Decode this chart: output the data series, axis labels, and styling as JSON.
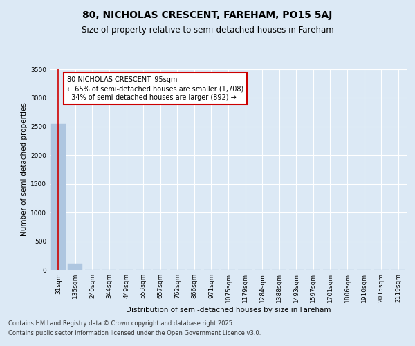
{
  "title": "80, NICHOLAS CRESCENT, FAREHAM, PO15 5AJ",
  "subtitle": "Size of property relative to semi-detached houses in Fareham",
  "xlabel": "Distribution of semi-detached houses by size in Fareham",
  "ylabel": "Number of semi-detached properties",
  "footnote1": "Contains HM Land Registry data © Crown copyright and database right 2025.",
  "footnote2": "Contains public sector information licensed under the Open Government Licence v3.0.",
  "bar_labels": [
    "31sqm",
    "135sqm",
    "240sqm",
    "344sqm",
    "449sqm",
    "553sqm",
    "657sqm",
    "762sqm",
    "866sqm",
    "971sqm",
    "1075sqm",
    "1179sqm",
    "1284sqm",
    "1388sqm",
    "1493sqm",
    "1597sqm",
    "1701sqm",
    "1806sqm",
    "1910sqm",
    "2015sqm",
    "2119sqm"
  ],
  "bar_values": [
    2550,
    110,
    0,
    0,
    0,
    0,
    0,
    0,
    0,
    0,
    0,
    0,
    0,
    0,
    0,
    0,
    0,
    0,
    0,
    0,
    0
  ],
  "bar_color": "#aec6e0",
  "bar_edgecolor": "#aec6e0",
  "property_bar_index": 0,
  "property_line_color": "#cc0000",
  "property_label": "80 NICHOLAS CRESCENT: 95sqm",
  "pct_smaller": 65,
  "n_smaller": "1,708",
  "pct_larger": 34,
  "n_larger": "892",
  "annotation_box_color": "#cc0000",
  "ylim": [
    0,
    3500
  ],
  "yticks": [
    0,
    500,
    1000,
    1500,
    2000,
    2500,
    3000,
    3500
  ],
  "background_color": "#dce9f5",
  "plot_background_color": "#dce9f5",
  "grid_color": "#ffffff",
  "title_fontsize": 10,
  "subtitle_fontsize": 8.5,
  "axis_label_fontsize": 7.5,
  "tick_fontsize": 6.5,
  "annotation_fontsize": 7,
  "footnote_fontsize": 6
}
